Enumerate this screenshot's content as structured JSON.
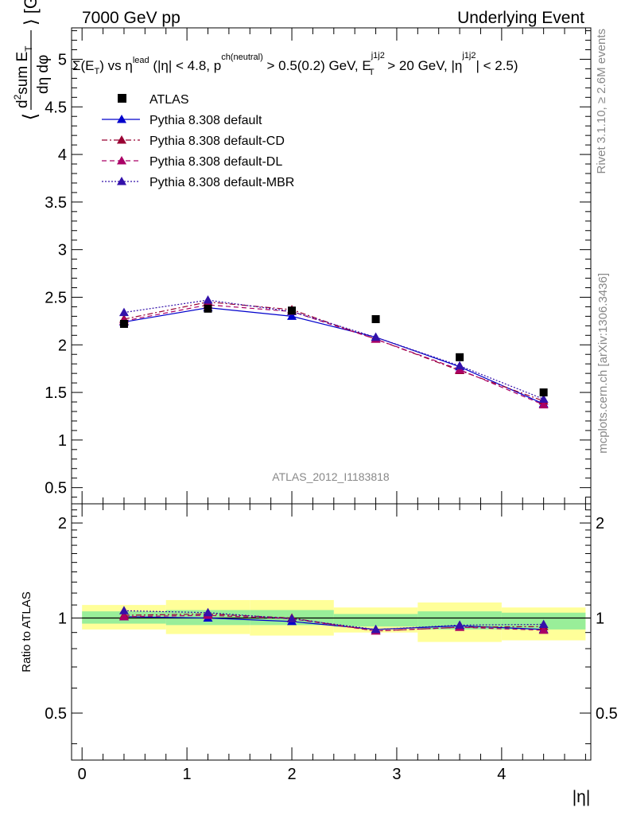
{
  "header": {
    "left_label": "7000 GeV pp",
    "right_label": "Underlying Event"
  },
  "side_labels": {
    "rivet": "Rivet 3.1.10, ≥ 2.6M events",
    "mcplots": "mcplots.cern.ch [arXiv:1306.3436]"
  },
  "chart_data": [
    {
      "type": "line",
      "title": "Σ(E_T) vs η^lead (|η| < 4.8, p_T^ch(neutral) > 0.5(0.2) GeV, E_T^j1j2 > 20 GeV, |η^j1j2| < 2.5)",
      "title_parts": {
        "t1": "Σ(E",
        "t2": "T",
        "t3": ") vs η",
        "t4": "lead",
        "t5": " (|η| < 4.8, p",
        "t6": "ch(neutral)",
        "t7": " > 0.5(0.2) GeV, E",
        "t8": "j1j2",
        "t9": "T",
        "t10": " > 20 GeV, |η",
        "t11": "j1j2",
        "t12": "| < 2.5)"
      },
      "ylabel": "⟨ d²sum E_T / dη dφ ⟩ [GeV]",
      "ylabel_parts": {
        "open": "⟨",
        "num": "d",
        "sup2": "2",
        "num2": "sum E",
        "sub": "T",
        "den": "dη dφ",
        "close": "⟩ [GeV]"
      },
      "watermark": "ATLAS_2012_I1183818",
      "xlim": [
        -0.1,
        4.85
      ],
      "ylim": [
        0.33,
        5.33
      ],
      "yticks": [
        0.5,
        1,
        1.5,
        2,
        2.5,
        3,
        3.5,
        4,
        4.5,
        5
      ],
      "ytick_labels": [
        "0.5",
        "1",
        "1.5",
        "2",
        "2.5",
        "3",
        "3.5",
        "4",
        "4.5",
        "5"
      ],
      "legend_position": "top-left",
      "x": [
        0.4,
        1.2,
        2.0,
        2.8,
        3.6,
        4.4
      ],
      "series": [
        {
          "name": "ATLAS",
          "kind": "data",
          "color": "#000000",
          "values": [
            2.22,
            2.38,
            2.36,
            2.27,
            1.87,
            1.5
          ]
        },
        {
          "name": "Pythia 8.308 default",
          "kind": "solid",
          "color": "#0000cc",
          "values": [
            2.24,
            2.39,
            2.3,
            2.08,
            1.77,
            1.38
          ]
        },
        {
          "name": "Pythia 8.308 default-CD",
          "kind": "dashdot",
          "color": "#990033",
          "values": [
            2.27,
            2.45,
            2.37,
            2.06,
            1.73,
            1.41
          ]
        },
        {
          "name": "Pythia 8.308 default-DL",
          "kind": "dashed",
          "color": "#aa0066",
          "values": [
            2.25,
            2.42,
            2.35,
            2.06,
            1.74,
            1.37
          ]
        },
        {
          "name": "Pythia 8.308 default-MBR",
          "kind": "dotted",
          "color": "#3311aa",
          "values": [
            2.34,
            2.47,
            2.35,
            2.08,
            1.78,
            1.43
          ]
        }
      ]
    },
    {
      "type": "line",
      "ylabel": "Ratio to ATLAS",
      "xlabel": "|η|",
      "scale": "log",
      "xlim": [
        -0.1,
        4.85
      ],
      "ylim": [
        0.355,
        2.3
      ],
      "yticks": [
        0.5,
        1,
        2
      ],
      "ytick_labels": [
        "0.5",
        "1",
        "2"
      ],
      "xticks": [
        0,
        1,
        2,
        3,
        4
      ],
      "xtick_labels": [
        "0",
        "1",
        "2",
        "3",
        "4"
      ],
      "uncertainty_bands": [
        {
          "x_range": [
            0.0,
            0.8
          ],
          "inner": [
            0.96,
            1.05
          ],
          "outer": [
            0.92,
            1.1
          ]
        },
        {
          "x_range": [
            0.8,
            1.6
          ],
          "inner": [
            0.95,
            1.06
          ],
          "outer": [
            0.89,
            1.14
          ]
        },
        {
          "x_range": [
            1.6,
            2.4
          ],
          "inner": [
            0.95,
            1.06
          ],
          "outer": [
            0.88,
            1.14
          ]
        },
        {
          "x_range": [
            2.4,
            3.2
          ],
          "inner": [
            0.94,
            1.03
          ],
          "outer": [
            0.9,
            1.08
          ]
        },
        {
          "x_range": [
            3.2,
            4.0
          ],
          "inner": [
            0.92,
            1.05
          ],
          "outer": [
            0.84,
            1.12
          ]
        },
        {
          "x_range": [
            4.0,
            4.8
          ],
          "inner": [
            0.92,
            1.04
          ],
          "outer": [
            0.85,
            1.08
          ]
        }
      ],
      "x": [
        0.4,
        1.2,
        2.0,
        2.8,
        3.6,
        4.4
      ],
      "series": [
        {
          "name": "Pythia 8.308 default",
          "kind": "solid",
          "color": "#0000cc",
          "values": [
            1.01,
            1.0,
            0.975,
            0.92,
            0.945,
            0.92
          ]
        },
        {
          "name": "Pythia 8.308 default-CD",
          "kind": "dashdot",
          "color": "#990033",
          "values": [
            1.02,
            1.03,
            1.0,
            0.91,
            0.935,
            0.94
          ]
        },
        {
          "name": "Pythia 8.308 default-DL",
          "kind": "dashed",
          "color": "#aa0066",
          "values": [
            1.01,
            1.02,
            0.995,
            0.91,
            0.935,
            0.915
          ]
        },
        {
          "name": "Pythia 8.308 default-MBR",
          "kind": "dotted",
          "color": "#3311aa",
          "values": [
            1.055,
            1.04,
            0.995,
            0.92,
            0.95,
            0.955
          ]
        }
      ]
    }
  ]
}
